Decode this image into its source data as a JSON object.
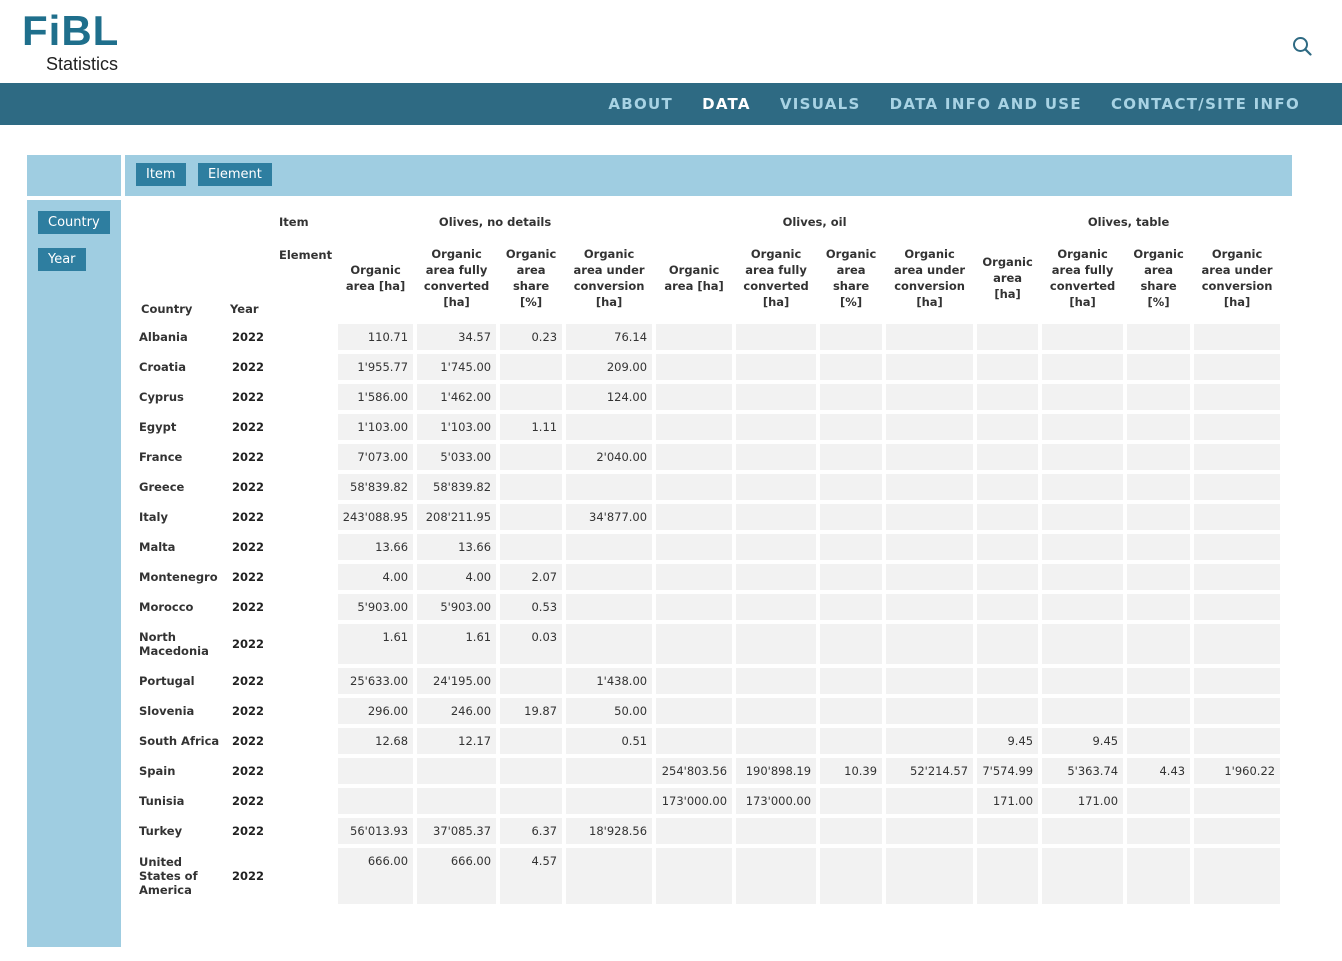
{
  "header": {
    "logo_main": "FiBL",
    "logo_sub": "Statistics",
    "search_icon": "search-icon"
  },
  "nav": {
    "items": [
      {
        "label": "ABOUT",
        "active": false
      },
      {
        "label": "DATA",
        "active": true
      },
      {
        "label": "VISUALS",
        "active": false
      },
      {
        "label": "DATA INFO AND USE",
        "active": false
      },
      {
        "label": "CONTACT/SITE INFO",
        "active": false
      }
    ]
  },
  "pivot": {
    "column_chips": [
      "Item",
      "Element"
    ],
    "row_chips": [
      "Country",
      "Year"
    ]
  },
  "table": {
    "item_label": "Item",
    "element_label": "Element",
    "country_label": "Country",
    "year_label": "Year",
    "items": [
      "Olives, no details",
      "Olives, oil",
      "Olives, table"
    ],
    "elements": [
      "Organic area [ha]",
      "Organic area fully converted [ha]",
      "Organic area share [%]",
      "Organic area under conversion [ha]",
      "Organic area [ha]",
      "Organic area fully converted [ha]",
      "Organic area share [%]",
      "Organic area under conversion [ha]",
      "Organic area [ha]",
      "Organic area fully converted [ha]",
      "Organic area share [%]",
      "Organic area under conversion [ha]"
    ],
    "rows": [
      {
        "country": "Albania",
        "year": "2022",
        "values": [
          "110.71",
          "34.57",
          "0.23",
          "76.14",
          "",
          "",
          "",
          "",
          "",
          "",
          "",
          ""
        ]
      },
      {
        "country": "Croatia",
        "year": "2022",
        "values": [
          "1'955.77",
          "1'745.00",
          "",
          "209.00",
          "",
          "",
          "",
          "",
          "",
          "",
          "",
          ""
        ]
      },
      {
        "country": "Cyprus",
        "year": "2022",
        "values": [
          "1'586.00",
          "1'462.00",
          "",
          "124.00",
          "",
          "",
          "",
          "",
          "",
          "",
          "",
          ""
        ]
      },
      {
        "country": "Egypt",
        "year": "2022",
        "values": [
          "1'103.00",
          "1'103.00",
          "1.11",
          "",
          "",
          "",
          "",
          "",
          "",
          "",
          "",
          ""
        ]
      },
      {
        "country": "France",
        "year": "2022",
        "values": [
          "7'073.00",
          "5'033.00",
          "",
          "2'040.00",
          "",
          "",
          "",
          "",
          "",
          "",
          "",
          ""
        ]
      },
      {
        "country": "Greece",
        "year": "2022",
        "values": [
          "58'839.82",
          "58'839.82",
          "",
          "",
          "",
          "",
          "",
          "",
          "",
          "",
          "",
          ""
        ]
      },
      {
        "country": "Italy",
        "year": "2022",
        "values": [
          "243'088.95",
          "208'211.95",
          "",
          "34'877.00",
          "",
          "",
          "",
          "",
          "",
          "",
          "",
          ""
        ]
      },
      {
        "country": "Malta",
        "year": "2022",
        "values": [
          "13.66",
          "13.66",
          "",
          "",
          "",
          "",
          "",
          "",
          "",
          "",
          "",
          ""
        ]
      },
      {
        "country": "Montenegro",
        "year": "2022",
        "values": [
          "4.00",
          "4.00",
          "2.07",
          "",
          "",
          "",
          "",
          "",
          "",
          "",
          "",
          ""
        ]
      },
      {
        "country": "Morocco",
        "year": "2022",
        "values": [
          "5'903.00",
          "5'903.00",
          "0.53",
          "",
          "",
          "",
          "",
          "",
          "",
          "",
          "",
          ""
        ]
      },
      {
        "country": "North Macedonia",
        "year": "2022",
        "values": [
          "1.61",
          "1.61",
          "0.03",
          "",
          "",
          "",
          "",
          "",
          "",
          "",
          "",
          ""
        ]
      },
      {
        "country": "Portugal",
        "year": "2022",
        "values": [
          "25'633.00",
          "24'195.00",
          "",
          "1'438.00",
          "",
          "",
          "",
          "",
          "",
          "",
          "",
          ""
        ]
      },
      {
        "country": "Slovenia",
        "year": "2022",
        "values": [
          "296.00",
          "246.00",
          "19.87",
          "50.00",
          "",
          "",
          "",
          "",
          "",
          "",
          "",
          ""
        ]
      },
      {
        "country": "South Africa",
        "year": "2022",
        "values": [
          "12.68",
          "12.17",
          "",
          "0.51",
          "",
          "",
          "",
          "",
          "9.45",
          "9.45",
          "",
          ""
        ]
      },
      {
        "country": "Spain",
        "year": "2022",
        "values": [
          "",
          "",
          "",
          "",
          "254'803.56",
          "190'898.19",
          "10.39",
          "52'214.57",
          "7'574.99",
          "5'363.74",
          "4.43",
          "1'960.22"
        ]
      },
      {
        "country": "Tunisia",
        "year": "2022",
        "values": [
          "",
          "",
          "",
          "",
          "173'000.00",
          "173'000.00",
          "",
          "",
          "171.00",
          "171.00",
          "",
          ""
        ]
      },
      {
        "country": "Turkey",
        "year": "2022",
        "values": [
          "56'013.93",
          "37'085.37",
          "6.37",
          "18'928.56",
          "",
          "",
          "",
          "",
          "",
          "",
          "",
          ""
        ]
      },
      {
        "country": "United States of America",
        "year": "2022",
        "values": [
          "666.00",
          "666.00",
          "4.57",
          "",
          "",
          "",
          "",
          "",
          "",
          "",
          "",
          ""
        ]
      }
    ]
  }
}
